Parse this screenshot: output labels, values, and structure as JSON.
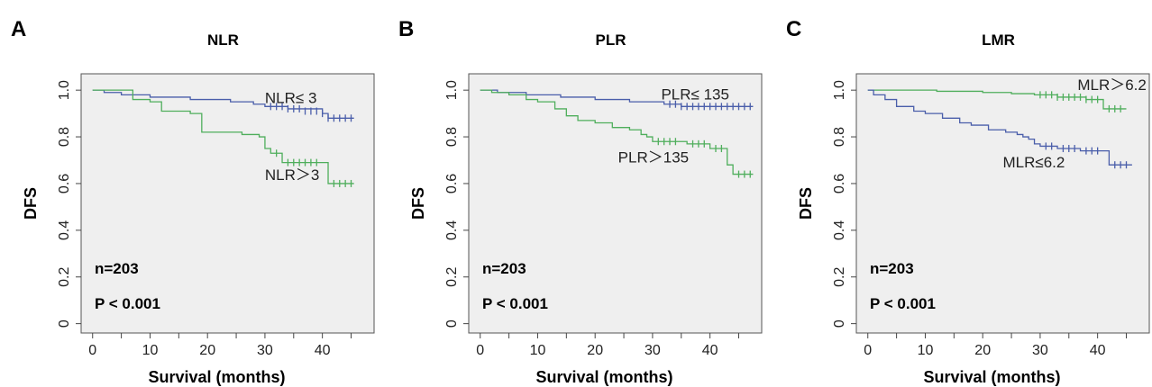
{
  "chart_data": [
    {
      "type": "line",
      "panel_label": "A",
      "title": "NLR",
      "xlabel": "Survival (months)",
      "ylabel": "DFS",
      "xlim": [
        -2,
        49
      ],
      "ylim": [
        -0.04,
        1.07
      ],
      "xticks": [
        0,
        10,
        20,
        30,
        40
      ],
      "yticks": [
        0,
        0.2,
        0.4,
        0.6,
        0.8,
        1.0
      ],
      "ytick_labels": [
        "0",
        "0.2",
        "0.4",
        "0.6",
        "0.8",
        "1.0"
      ],
      "grid": false,
      "background": "#efefef",
      "annotations": [
        "n=203",
        "P < 0.001"
      ],
      "series": [
        {
          "name": "NLR≤ 3",
          "color": "#4a5eaa",
          "label_pos": [
            30,
            0.945
          ],
          "x": [
            0,
            2,
            5,
            10,
            17,
            24,
            28,
            30,
            34,
            40,
            41,
            45.5
          ],
          "y": [
            1.0,
            0.99,
            0.98,
            0.97,
            0.96,
            0.95,
            0.94,
            0.93,
            0.92,
            0.9,
            0.88,
            0.88
          ],
          "censor_x": [
            31,
            32,
            33,
            34,
            35,
            36,
            37,
            38,
            39,
            40,
            41,
            42,
            43,
            44,
            45
          ],
          "censor_y": [
            0.93,
            0.93,
            0.93,
            0.92,
            0.92,
            0.92,
            0.91,
            0.91,
            0.91,
            0.9,
            0.88,
            0.88,
            0.88,
            0.88,
            0.88
          ]
        },
        {
          "name": "NLR＞3",
          "color": "#4fae5c",
          "label_pos": [
            30,
            0.615
          ],
          "x": [
            0,
            7,
            10,
            12,
            17,
            19,
            25,
            26,
            29,
            30,
            31,
            33,
            40,
            41,
            45.5
          ],
          "y": [
            1.0,
            0.96,
            0.95,
            0.91,
            0.9,
            0.82,
            0.82,
            0.81,
            0.8,
            0.75,
            0.73,
            0.69,
            0.69,
            0.6,
            0.6
          ],
          "censor_x": [
            32,
            34,
            35,
            36,
            37,
            38,
            39,
            42,
            43,
            44,
            45
          ],
          "censor_y": [
            0.73,
            0.69,
            0.69,
            0.69,
            0.69,
            0.69,
            0.69,
            0.6,
            0.6,
            0.6,
            0.6
          ]
        }
      ]
    },
    {
      "type": "line",
      "panel_label": "B",
      "title": "PLR",
      "xlabel": "Survival (months)",
      "ylabel": "DFS",
      "xlim": [
        -2,
        49
      ],
      "ylim": [
        -0.04,
        1.07
      ],
      "xticks": [
        0,
        10,
        20,
        30,
        40
      ],
      "yticks": [
        0,
        0.2,
        0.4,
        0.6,
        0.8,
        1.0
      ],
      "ytick_labels": [
        "0",
        "0.2",
        "0.4",
        "0.6",
        "0.8",
        "1.0"
      ],
      "grid": false,
      "background": "#efefef",
      "annotations": [
        "n=203",
        "P < 0.001"
      ],
      "series": [
        {
          "name": "PLR≤ 135",
          "color": "#4a5eaa",
          "label_pos": [
            31.5,
            0.96
          ],
          "x": [
            0,
            3,
            8,
            14,
            20,
            26,
            32,
            35,
            47.5
          ],
          "y": [
            1.0,
            0.99,
            0.98,
            0.97,
            0.96,
            0.95,
            0.94,
            0.93,
            0.93
          ],
          "censor_x": [
            33,
            34,
            35,
            36,
            37,
            38,
            39,
            40,
            41,
            42,
            43,
            44,
            45,
            46,
            47
          ],
          "censor_y": [
            0.94,
            0.94,
            0.93,
            0.93,
            0.93,
            0.93,
            0.93,
            0.93,
            0.93,
            0.93,
            0.93,
            0.93,
            0.93,
            0.93,
            0.93
          ]
        },
        {
          "name": "PLR＞135",
          "color": "#4fae5c",
          "label_pos": [
            24,
            0.69
          ],
          "x": [
            0,
            2,
            5,
            8,
            10,
            13,
            15,
            17,
            20,
            23,
            26,
            28,
            29,
            30,
            36,
            40,
            43,
            44,
            47.5
          ],
          "y": [
            1.0,
            0.99,
            0.98,
            0.96,
            0.95,
            0.92,
            0.89,
            0.87,
            0.86,
            0.84,
            0.83,
            0.81,
            0.8,
            0.78,
            0.77,
            0.75,
            0.68,
            0.64,
            0.64
          ],
          "censor_x": [
            31,
            32,
            33,
            34,
            37,
            38,
            39,
            41,
            42,
            45,
            46,
            47
          ],
          "censor_y": [
            0.78,
            0.78,
            0.78,
            0.78,
            0.77,
            0.77,
            0.77,
            0.75,
            0.75,
            0.64,
            0.64,
            0.64
          ]
        }
      ]
    },
    {
      "type": "line",
      "panel_label": "C",
      "title": "LMR",
      "xlabel": "Survival (months)",
      "ylabel": "DFS",
      "xlim": [
        -2,
        49
      ],
      "ylim": [
        -0.04,
        1.07
      ],
      "xticks": [
        0,
        10,
        20,
        30,
        40
      ],
      "yticks": [
        0,
        0.2,
        0.4,
        0.6,
        0.8,
        1.0
      ],
      "ytick_labels": [
        "0",
        "0.2",
        "0.4",
        "0.6",
        "0.8",
        "1.0"
      ],
      "grid": false,
      "background": "#efefef",
      "annotations": [
        "n=203",
        "P < 0.001"
      ],
      "series": [
        {
          "name": "MLR＞6.2",
          "color": "#4fae5c",
          "label_pos": [
            36.5,
            1.0
          ],
          "x": [
            0,
            12,
            20,
            25,
            29,
            33,
            38,
            41,
            45
          ],
          "y": [
            1.0,
            0.995,
            0.99,
            0.985,
            0.98,
            0.97,
            0.96,
            0.92,
            0.92
          ],
          "censor_x": [
            30,
            31,
            32,
            33,
            34,
            35,
            36,
            37,
            38,
            39,
            40,
            42,
            43,
            44
          ],
          "censor_y": [
            0.98,
            0.98,
            0.98,
            0.97,
            0.97,
            0.97,
            0.97,
            0.97,
            0.96,
            0.96,
            0.96,
            0.92,
            0.92,
            0.92
          ]
        },
        {
          "name": "MLR≤6.2",
          "color": "#4a5eaa",
          "label_pos": [
            23.5,
            0.67
          ],
          "x": [
            0,
            1,
            3,
            5,
            8,
            10,
            13,
            16,
            18,
            21,
            24,
            26,
            27,
            28,
            29,
            30,
            33,
            37,
            42,
            46
          ],
          "y": [
            1.0,
            0.98,
            0.96,
            0.93,
            0.91,
            0.9,
            0.88,
            0.86,
            0.85,
            0.83,
            0.82,
            0.81,
            0.8,
            0.79,
            0.77,
            0.76,
            0.75,
            0.74,
            0.68,
            0.68
          ],
          "censor_x": [
            31,
            32,
            34,
            35,
            36,
            38,
            39,
            40,
            43,
            44,
            45
          ],
          "censor_y": [
            0.76,
            0.76,
            0.75,
            0.75,
            0.75,
            0.74,
            0.74,
            0.74,
            0.68,
            0.68,
            0.68
          ]
        }
      ]
    }
  ]
}
